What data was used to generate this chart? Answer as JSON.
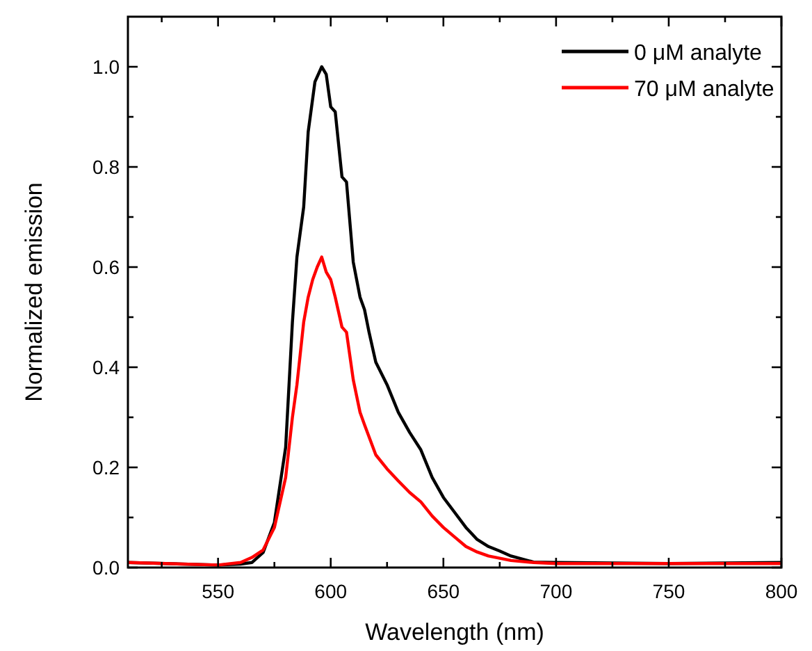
{
  "chart_data": {
    "type": "line",
    "xlabel": "Wavelength (nm)",
    "ylabel": "Normalized emission",
    "xlim": [
      510,
      800
    ],
    "ylim": [
      0,
      1.1
    ],
    "xticks": [
      {
        "value": 525,
        "label": null
      },
      550,
      {
        "value": 575,
        "label": null
      },
      600,
      {
        "value": 625,
        "label": null
      },
      650,
      {
        "value": 675,
        "label": null
      },
      700,
      {
        "value": 725,
        "label": null
      },
      750,
      {
        "value": 775,
        "label": null
      },
      800
    ],
    "yticks": [
      "0.0",
      {
        "value": 0.1,
        "label": null
      },
      {
        "value": 0.2,
        "label": "0.2"
      },
      {
        "value": 0.3,
        "label": null
      },
      {
        "value": 0.4,
        "label": "0.4"
      },
      {
        "value": 0.5,
        "label": null
      },
      {
        "value": 0.6,
        "label": "0.6"
      },
      {
        "value": 0.7,
        "label": null
      },
      {
        "value": 0.8,
        "label": "0.8"
      },
      {
        "value": 0.9,
        "label": null
      },
      {
        "value": 1.0,
        "label": "1.0"
      }
    ],
    "legend": "top right",
    "grid": false,
    "marker": "none",
    "line_style": "solid",
    "series": [
      {
        "name": "0 μM analyte",
        "color": "#000000",
        "x": [
          510,
          550,
          560,
          565,
          570,
          575,
          580,
          583,
          585,
          588,
          590,
          593,
          596,
          598,
          600,
          602,
          605,
          607,
          610,
          613,
          615,
          617,
          620,
          625,
          630,
          635,
          640,
          645,
          650,
          655,
          660,
          665,
          670,
          675,
          680,
          690,
          700,
          750,
          800
        ],
        "values": [
          0.01,
          0.005,
          0.007,
          0.01,
          0.03,
          0.09,
          0.24,
          0.49,
          0.62,
          0.72,
          0.87,
          0.97,
          1.0,
          0.985,
          0.92,
          0.91,
          0.78,
          0.77,
          0.61,
          0.54,
          0.515,
          0.47,
          0.41,
          0.365,
          0.31,
          0.27,
          0.235,
          0.18,
          0.14,
          0.11,
          0.08,
          0.056,
          0.042,
          0.033,
          0.023,
          0.011,
          0.01,
          0.008,
          0.01
        ]
      },
      {
        "name": "70 μM analyte",
        "color": "#ff0000",
        "x": [
          510,
          550,
          560,
          565,
          570,
          575,
          580,
          583,
          585,
          588,
          590,
          592,
          594,
          596,
          598,
          600,
          602,
          605,
          607,
          610,
          613,
          615,
          620,
          625,
          630,
          635,
          640,
          645,
          650,
          655,
          660,
          665,
          670,
          680,
          690,
          700,
          750,
          800
        ],
        "values": [
          0.01,
          0.005,
          0.01,
          0.02,
          0.035,
          0.08,
          0.18,
          0.3,
          0.365,
          0.49,
          0.54,
          0.575,
          0.6,
          0.62,
          0.59,
          0.575,
          0.54,
          0.48,
          0.47,
          0.375,
          0.31,
          0.285,
          0.225,
          0.197,
          0.173,
          0.15,
          0.131,
          0.103,
          0.08,
          0.061,
          0.042,
          0.031,
          0.023,
          0.014,
          0.01,
          0.008,
          0.008,
          0.008
        ]
      }
    ]
  }
}
